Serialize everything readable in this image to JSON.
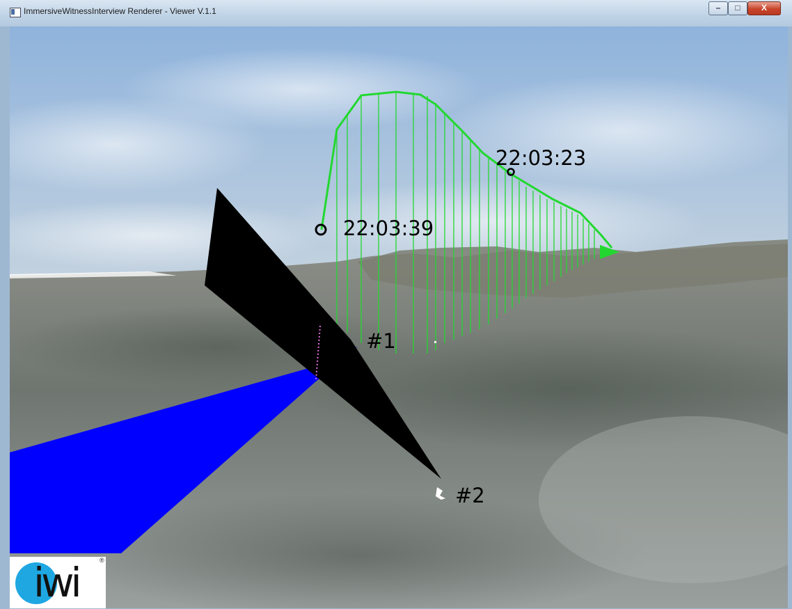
{
  "window": {
    "title": "ImmersiveWitnessInterview Renderer - Viewer V.1.1",
    "controls": {
      "minimize": "–",
      "maximize": "□",
      "close": "X"
    }
  },
  "scene": {
    "time_labels": {
      "start": "22:03:39",
      "mid": "22:03:23"
    },
    "markers": {
      "first": "#1",
      "second": "#2"
    },
    "colors": {
      "track": "#22d830",
      "sightline_1": "#0000ff",
      "sightline_2": "#000000"
    }
  },
  "logo": {
    "text": "iwi",
    "registered": "®"
  }
}
